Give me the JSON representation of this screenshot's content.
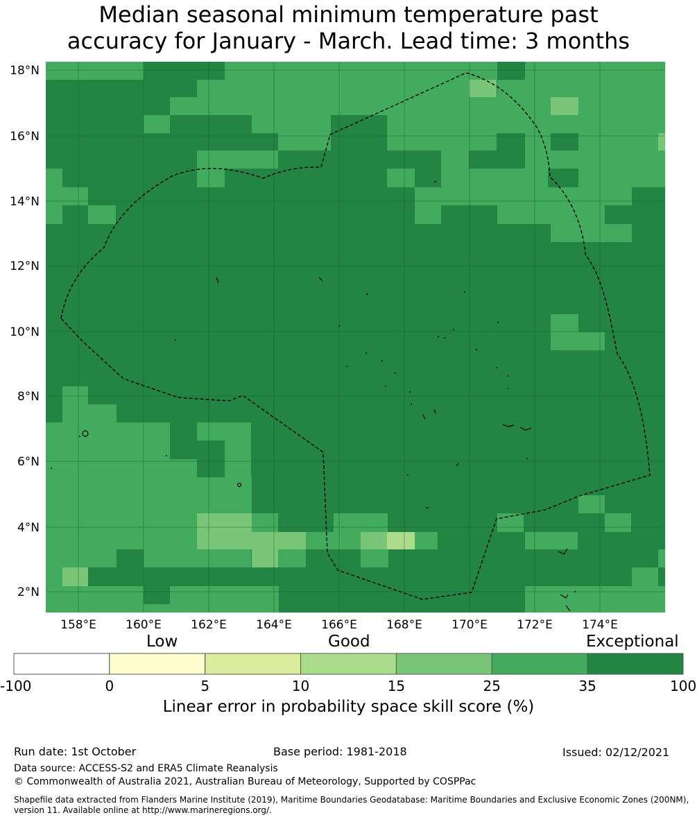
{
  "title": {
    "line1": "Median seasonal minimum temperature past",
    "line2": "accuracy for January - March. Lead time: 3 months"
  },
  "map": {
    "lon_range": [
      157,
      176
    ],
    "lat_range": [
      1.4,
      18.4
    ],
    "lon_ticks": [
      "158°E",
      "160°E",
      "162°E",
      "164°E",
      "166°E",
      "168°E",
      "170°E",
      "172°E",
      "174°E"
    ],
    "lat_ticks": [
      "18°N",
      "16°N",
      "14°N",
      "12°N",
      "10°N",
      "8°N",
      "6°N",
      "4°N",
      "2°N"
    ],
    "grid": true,
    "eez_boundary": "dashed",
    "dominant_category": "35 to 100 (Exceptional)"
  },
  "legend": {
    "category_labels": {
      "low": "Low",
      "good": "Good",
      "exceptional": "Exceptional"
    },
    "ticks": [
      "-100",
      "0",
      "5",
      "10",
      "15",
      "25",
      "35",
      "100"
    ],
    "colors": [
      "#ffffff",
      "#fefecf",
      "#dbeea0",
      "#abdc8c",
      "#79c679",
      "#42ab5d",
      "#238443"
    ],
    "title": "Linear error in probability space skill score (%)"
  },
  "footer": {
    "run_date": "Run date: 1st October",
    "base_period": "Base period: 1981-2018",
    "issued": "Issued: 02/12/2021",
    "data_source": "Data source: ACCESS-S2 and ERA5 Climate Reanalysis",
    "copyright": "© Commonwealth of Australia 2021, Australian Bureau of Meteorology, Supported by COSPPac",
    "shapefile": "Shapefile data extracted from Flanders Marine Institute (2019), Maritime Boundaries Geodatabase: Maritime Boundaries and Exclusive Economic Zones (200NM), version 11. Available online at http://www.marineregions.org/."
  }
}
